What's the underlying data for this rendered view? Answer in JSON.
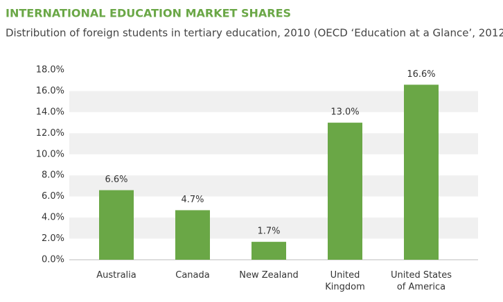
{
  "chart_data": {
    "type": "bar",
    "title": "INTERNATIONAL EDUCATION MARKET SHARES",
    "subtitle": "Distribution of foreign students in tertiary education, 2010 (OECD ‘Education at a Glance’, 2012)",
    "categories": [
      "Australia",
      "Canada",
      "New Zealand",
      "United Kingdom",
      "United States of America"
    ],
    "values": [
      6.6,
      4.7,
      1.7,
      13.0,
      16.6
    ],
    "value_labels": [
      "6.6%",
      "4.7%",
      "1.7%",
      "13.0%",
      "16.6%"
    ],
    "color": "#6aa746",
    "ylim": [
      0,
      18
    ],
    "yticks": [
      {
        "value": 0,
        "label": "0.0%"
      },
      {
        "value": 2,
        "label": "2.0%"
      },
      {
        "value": 4,
        "label": "4.0%"
      },
      {
        "value": 6,
        "label": "6.0%"
      },
      {
        "value": 8,
        "label": "8.0%"
      },
      {
        "value": 10,
        "label": "10.0%"
      },
      {
        "value": 12,
        "label": "12.0%"
      },
      {
        "value": 14,
        "label": "14.0%"
      },
      {
        "value": 16,
        "label": "16.0%"
      },
      {
        "value": 18,
        "label": "18.0%"
      }
    ],
    "grid": true
  }
}
